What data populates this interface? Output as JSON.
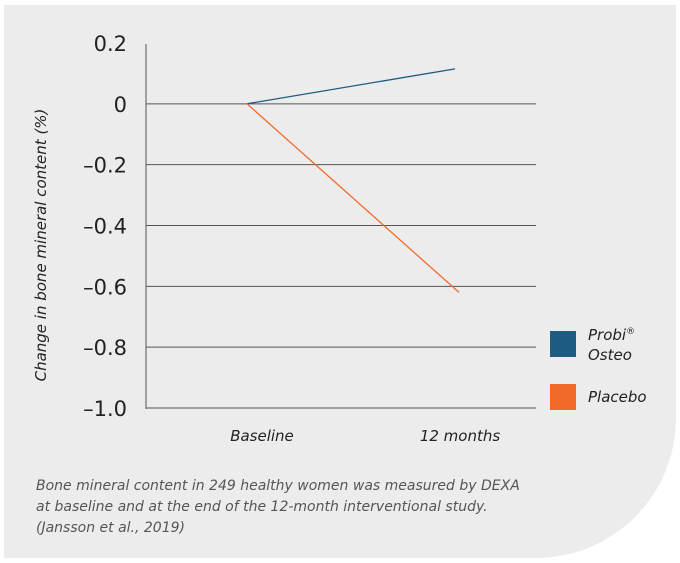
{
  "chart_data": {
    "type": "line",
    "categories": [
      "Baseline",
      "12 months"
    ],
    "series": [
      {
        "name": "Probi® Osteo",
        "values": [
          0,
          0.115
        ],
        "color": "#1d5b82"
      },
      {
        "name": "Placebo",
        "values": [
          0,
          -0.62
        ],
        "color": "#f26a2a"
      }
    ],
    "ylabel": "Change in bone mineral content (%)",
    "ylim": [
      -1.0,
      0.2
    ],
    "yticks": [
      "0.2",
      "0",
      "–0.2",
      "–0.4",
      "–0.6",
      "–0.8",
      "–1.0"
    ],
    "grid": true,
    "legend_placement": "right"
  },
  "legend": {
    "items": [
      {
        "name": "probi-osteo",
        "line1": "Probi",
        "sup": "®",
        "line2": "Osteo",
        "color": "#1d5b82"
      },
      {
        "name": "placebo",
        "line1": "Placebo",
        "sup": "",
        "line2": "",
        "color": "#f26a2a"
      }
    ]
  },
  "caption": "Bone mineral content in 249 healthy women was measured by DEXA\nat baseline and at the end of the 12-month interventional study.\n(Jansson et al., 2019)"
}
